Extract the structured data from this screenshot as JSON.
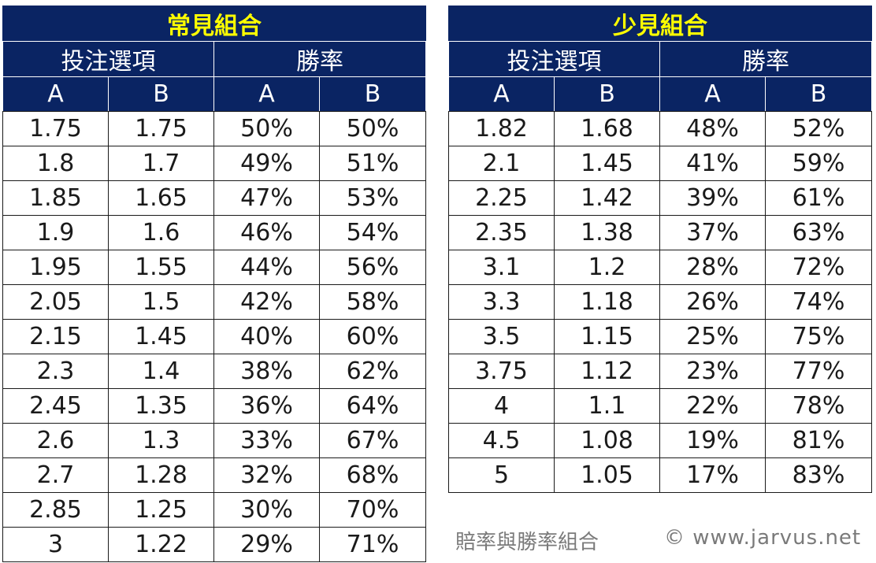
{
  "tables": [
    {
      "title": "常見組合",
      "group_headers": [
        "投注選項",
        "勝率"
      ],
      "column_headers": [
        "A",
        "B",
        "A",
        "B"
      ],
      "rows": [
        [
          "1.75",
          "1.75",
          "50%",
          "50%"
        ],
        [
          "1.8",
          "1.7",
          "49%",
          "51%"
        ],
        [
          "1.85",
          "1.65",
          "47%",
          "53%"
        ],
        [
          "1.9",
          "1.6",
          "46%",
          "54%"
        ],
        [
          "1.95",
          "1.55",
          "44%",
          "56%"
        ],
        [
          "2.05",
          "1.5",
          "42%",
          "58%"
        ],
        [
          "2.15",
          "1.45",
          "40%",
          "60%"
        ],
        [
          "2.3",
          "1.4",
          "38%",
          "62%"
        ],
        [
          "2.45",
          "1.35",
          "36%",
          "64%"
        ],
        [
          "2.6",
          "1.3",
          "33%",
          "67%"
        ],
        [
          "2.7",
          "1.28",
          "32%",
          "68%"
        ],
        [
          "2.85",
          "1.25",
          "30%",
          "70%"
        ],
        [
          "3",
          "1.22",
          "29%",
          "71%"
        ]
      ]
    },
    {
      "title": "少見組合",
      "group_headers": [
        "投注選項",
        "勝率"
      ],
      "column_headers": [
        "A",
        "B",
        "A",
        "B"
      ],
      "rows": [
        [
          "1.82",
          "1.68",
          "48%",
          "52%"
        ],
        [
          "2.1",
          "1.45",
          "41%",
          "59%"
        ],
        [
          "2.25",
          "1.42",
          "39%",
          "61%"
        ],
        [
          "2.35",
          "1.38",
          "37%",
          "63%"
        ],
        [
          "3.1",
          "1.2",
          "28%",
          "72%"
        ],
        [
          "3.3",
          "1.18",
          "26%",
          "74%"
        ],
        [
          "3.5",
          "1.15",
          "25%",
          "75%"
        ],
        [
          "3.75",
          "1.12",
          "23%",
          "77%"
        ],
        [
          "4",
          "1.1",
          "22%",
          "78%"
        ],
        [
          "4.5",
          "1.08",
          "19%",
          "81%"
        ],
        [
          "5",
          "1.05",
          "17%",
          "83%"
        ]
      ]
    }
  ],
  "caption": {
    "text": "賠率與勝率組合",
    "copyright": "© www.jarvus.net"
  },
  "colors": {
    "header_background": "#0a2463",
    "title_text": "#ffff00",
    "header_text": "#ffffff",
    "caption_text": "#7a7a7a"
  }
}
